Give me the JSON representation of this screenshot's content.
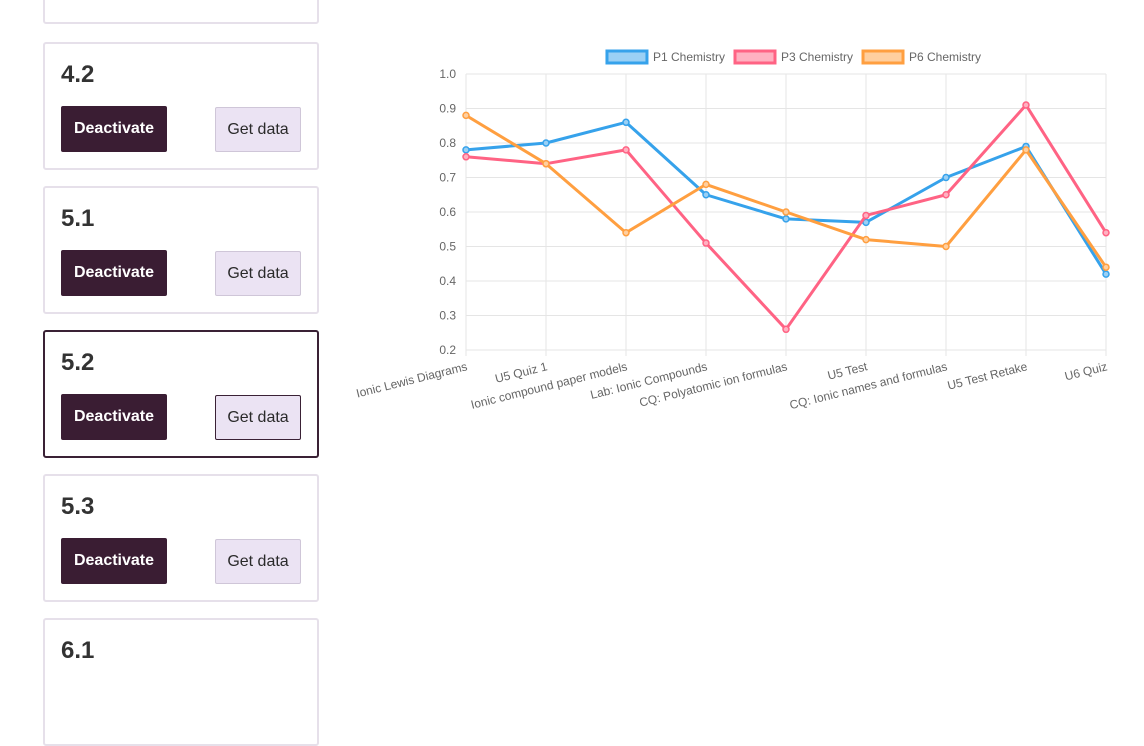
{
  "cards": [
    {
      "id": "top",
      "number": "",
      "deactivate_label": "",
      "get_data_label": ""
    },
    {
      "id": "4-2",
      "number": "4.2",
      "deactivate_label": "Deactivate",
      "get_data_label": "Get data"
    },
    {
      "id": "5-1",
      "number": "5.1",
      "deactivate_label": "Deactivate",
      "get_data_label": "Get data"
    },
    {
      "id": "5-2",
      "number": "5.2",
      "deactivate_label": "Deactivate",
      "get_data_label": "Get data",
      "active": true
    },
    {
      "id": "5-3",
      "number": "5.3",
      "deactivate_label": "Deactivate",
      "get_data_label": "Get data"
    },
    {
      "id": "6-1",
      "number": "6.1",
      "deactivate_label": "",
      "get_data_label": ""
    }
  ],
  "chart_data": {
    "type": "line",
    "categories": [
      "Ionic Lewis Diagrams",
      "U5 Quiz 1",
      "Ionic compound paper models",
      "Lab: Ionic Compounds",
      "CQ: Polyatomic ion formulas",
      "U5 Test",
      "CQ: Ionic names and formulas",
      "U5 Test Retake",
      "U6 Quiz"
    ],
    "series": [
      {
        "name": "P1 Chemistry",
        "color": "#36a2eb",
        "fill": "#9ad0f5",
        "values": [
          0.78,
          0.8,
          0.86,
          0.65,
          0.58,
          0.57,
          0.7,
          0.79,
          0.42
        ]
      },
      {
        "name": "P3 Chemistry",
        "color": "#ff6384",
        "fill": "#ffb1c1",
        "values": [
          0.76,
          0.74,
          0.78,
          0.51,
          0.26,
          0.59,
          0.65,
          0.91,
          0.54
        ]
      },
      {
        "name": "P6 Chemistry",
        "color": "#ff9f40",
        "fill": "#ffcf9f",
        "values": [
          0.88,
          0.74,
          0.54,
          0.68,
          0.6,
          0.52,
          0.5,
          0.78,
          0.44
        ]
      }
    ],
    "ylim": [
      0.2,
      1.0
    ],
    "yticks": [
      "0.2",
      "0.3",
      "0.4",
      "0.5",
      "0.6",
      "0.7",
      "0.8",
      "0.9",
      "1.0"
    ],
    "legend_position": "top",
    "grid": true
  }
}
